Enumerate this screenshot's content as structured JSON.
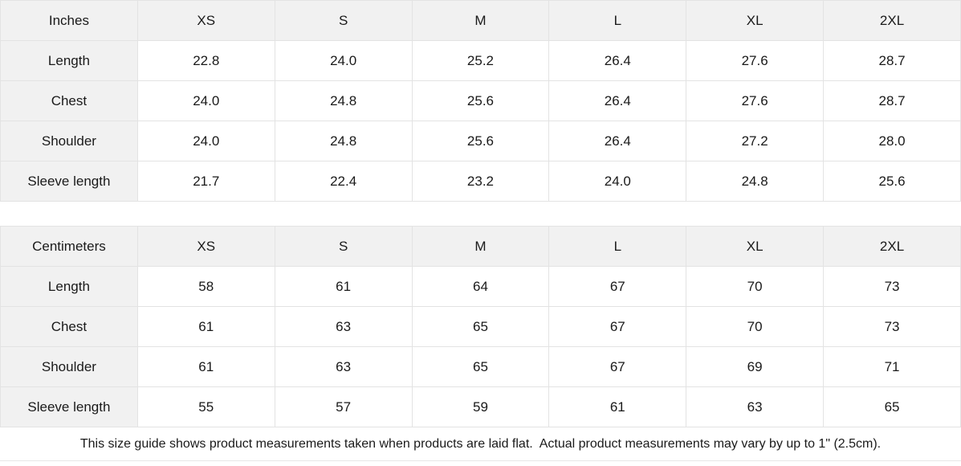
{
  "tables": [
    {
      "unit_label": "Inches",
      "sizes": [
        "XS",
        "S",
        "M",
        "L",
        "XL",
        "2XL"
      ],
      "rows": [
        {
          "label": "Length",
          "values": [
            "22.8",
            "24.0",
            "25.2",
            "26.4",
            "27.6",
            "28.7"
          ]
        },
        {
          "label": "Chest",
          "values": [
            "24.0",
            "24.8",
            "25.6",
            "26.4",
            "27.6",
            "28.7"
          ]
        },
        {
          "label": "Shoulder",
          "values": [
            "24.0",
            "24.8",
            "25.6",
            "26.4",
            "27.2",
            "28.0"
          ]
        },
        {
          "label": "Sleeve length",
          "values": [
            "21.7",
            "22.4",
            "23.2",
            "24.0",
            "24.8",
            "25.6"
          ]
        }
      ]
    },
    {
      "unit_label": "Centimeters",
      "sizes": [
        "XS",
        "S",
        "M",
        "L",
        "XL",
        "2XL"
      ],
      "rows": [
        {
          "label": "Length",
          "values": [
            "58",
            "61",
            "64",
            "67",
            "70",
            "73"
          ]
        },
        {
          "label": "Chest",
          "values": [
            "61",
            "63",
            "65",
            "67",
            "70",
            "73"
          ]
        },
        {
          "label": "Shoulder",
          "values": [
            "61",
            "63",
            "65",
            "67",
            "69",
            "71"
          ]
        },
        {
          "label": "Sleeve length",
          "values": [
            "55",
            "57",
            "59",
            "61",
            "63",
            "65"
          ]
        }
      ]
    }
  ],
  "footer": {
    "note": "This size guide shows product measurements taken when products are laid flat.  Actual product measurements may vary by up to 1\" (2.5cm)."
  },
  "colors": {
    "header_bg": "#f1f1f1",
    "border": "#e3e3e3",
    "text": "#1a1a1a"
  }
}
